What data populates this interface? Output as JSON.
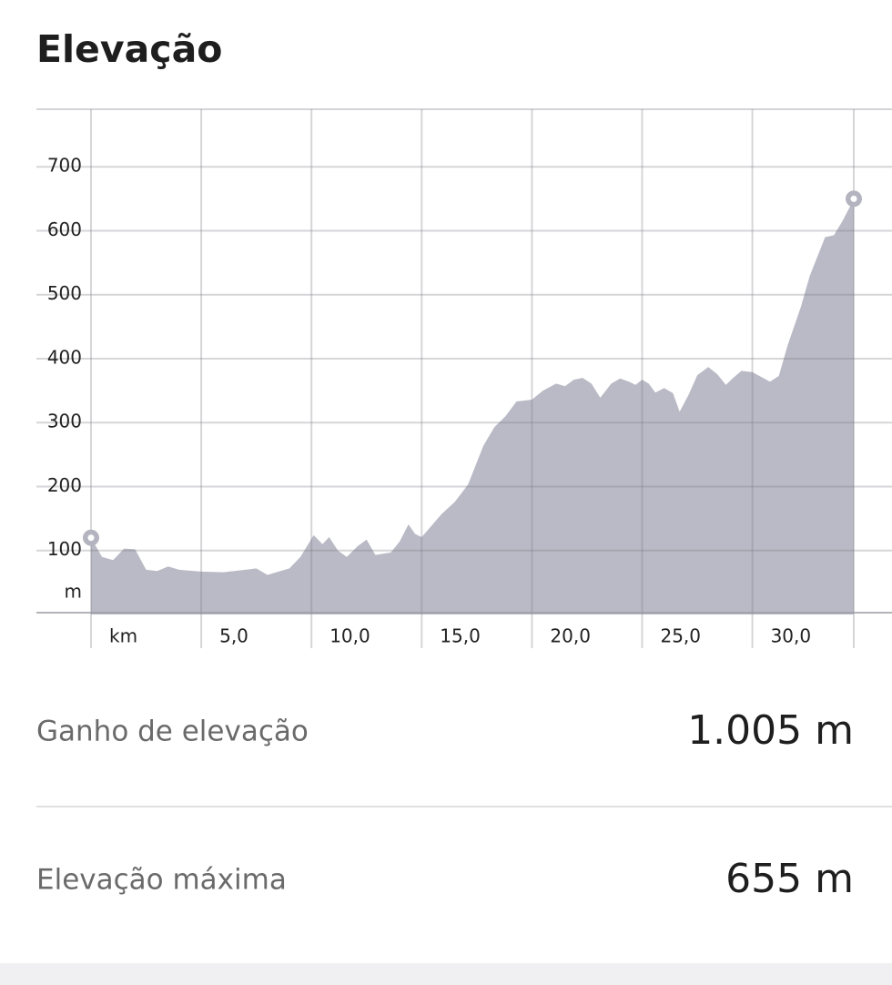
{
  "chart_data": {
    "type": "area",
    "title": "Elevação",
    "y_label": "m",
    "color": "#babac6",
    "x": [
      0,
      0.5,
      1.0,
      1.5,
      2.0,
      2.5,
      3.0,
      3.5,
      4.0,
      5.0,
      6.0,
      7.0,
      7.5,
      8.0,
      9.0,
      9.5,
      10.1,
      10.5,
      10.8,
      11.2,
      11.6,
      12.1,
      12.5,
      12.9,
      13.6,
      14.0,
      14.4,
      14.7,
      15.0,
      15.9,
      16.5,
      17.1,
      17.8,
      18.3,
      18.8,
      19.3,
      20.0,
      20.5,
      21.1,
      21.5,
      21.9,
      22.3,
      22.7,
      23.1,
      23.6,
      24.0,
      24.4,
      24.7,
      25.0,
      25.3,
      25.6,
      26.0,
      26.4,
      26.7,
      27.1,
      27.5,
      28.0,
      28.4,
      28.8,
      29.1,
      29.5,
      30.0,
      30.8,
      31.2,
      31.6,
      32.2,
      32.6,
      33.0,
      33.3,
      33.7,
      34.1,
      34.4,
      34.6
    ],
    "values": [
      120,
      90,
      85,
      103,
      102,
      70,
      68,
      75,
      70,
      67,
      66,
      70,
      72,
      62,
      72,
      90,
      124,
      110,
      121,
      100,
      90,
      107,
      117,
      93,
      97,
      114,
      141,
      126,
      121,
      157,
      176,
      203,
      264,
      293,
      310,
      333,
      336,
      350,
      361,
      357,
      367,
      370,
      361,
      339,
      361,
      369,
      364,
      359,
      367,
      361,
      347,
      354,
      346,
      317,
      343,
      374,
      387,
      376,
      359,
      369,
      381,
      379,
      364,
      373,
      421,
      481,
      529,
      564,
      590,
      593,
      616,
      636,
      650
    ],
    "xlim": [
      0,
      34.6
    ],
    "ylim": [
      0,
      790
    ],
    "xticks": [
      {
        "value": 0,
        "label": "km"
      },
      {
        "value": 5,
        "label": "5,0"
      },
      {
        "value": 10,
        "label": "10,0"
      },
      {
        "value": 15,
        "label": "15,0"
      },
      {
        "value": 20,
        "label": "20,0"
      },
      {
        "value": 25,
        "label": "25,0"
      },
      {
        "value": 30,
        "label": "30,0"
      }
    ],
    "yticks": [
      100,
      200,
      300,
      400,
      500,
      600,
      700
    ],
    "grid": true
  },
  "stats": [
    {
      "label": "Ganho de elevação",
      "value": "1.005 m"
    },
    {
      "label": "Elevação máxima",
      "value": "655 m"
    }
  ]
}
